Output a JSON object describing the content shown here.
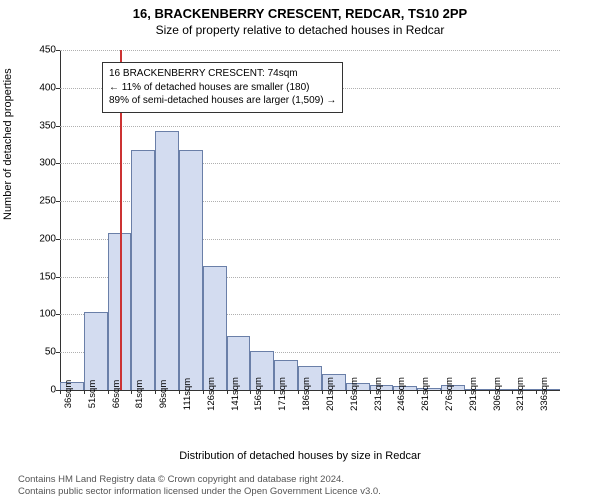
{
  "title_main": "16, BRACKENBERRY CRESCENT, REDCAR, TS10 2PP",
  "title_sub": "Size of property relative to detached houses in Redcar",
  "ylabel": "Number of detached properties",
  "xlabel": "Distribution of detached houses by size in Redcar",
  "footer_line1": "Contains HM Land Registry data © Crown copyright and database right 2024.",
  "footer_line2": "Contains public sector information licensed under the Open Government Licence v3.0.",
  "chart": {
    "type": "histogram",
    "background_color": "#ffffff",
    "grid_color": "#b0b0b0",
    "axis_color": "#333333",
    "bar_fill": "#d3dcf0",
    "bar_stroke": "#6a7fa8",
    "ref_line_color": "#cc3333",
    "ylim": [
      0,
      450
    ],
    "ytick_step": 50,
    "x_start": 36,
    "x_step": 15,
    "x_count": 21,
    "ref_value": 74,
    "values": [
      11,
      103,
      208,
      318,
      343,
      318,
      164,
      71,
      51,
      40,
      32,
      21,
      9,
      7,
      5,
      3,
      6,
      0,
      0,
      0,
      0
    ],
    "annotation": {
      "line1": "16 BRACKENBERRY CRESCENT: 74sqm",
      "line2": "← 11% of detached houses are smaller (180)",
      "line3": "89% of semi-detached houses are larger (1,509) →"
    },
    "label_fontsize": 10
  }
}
